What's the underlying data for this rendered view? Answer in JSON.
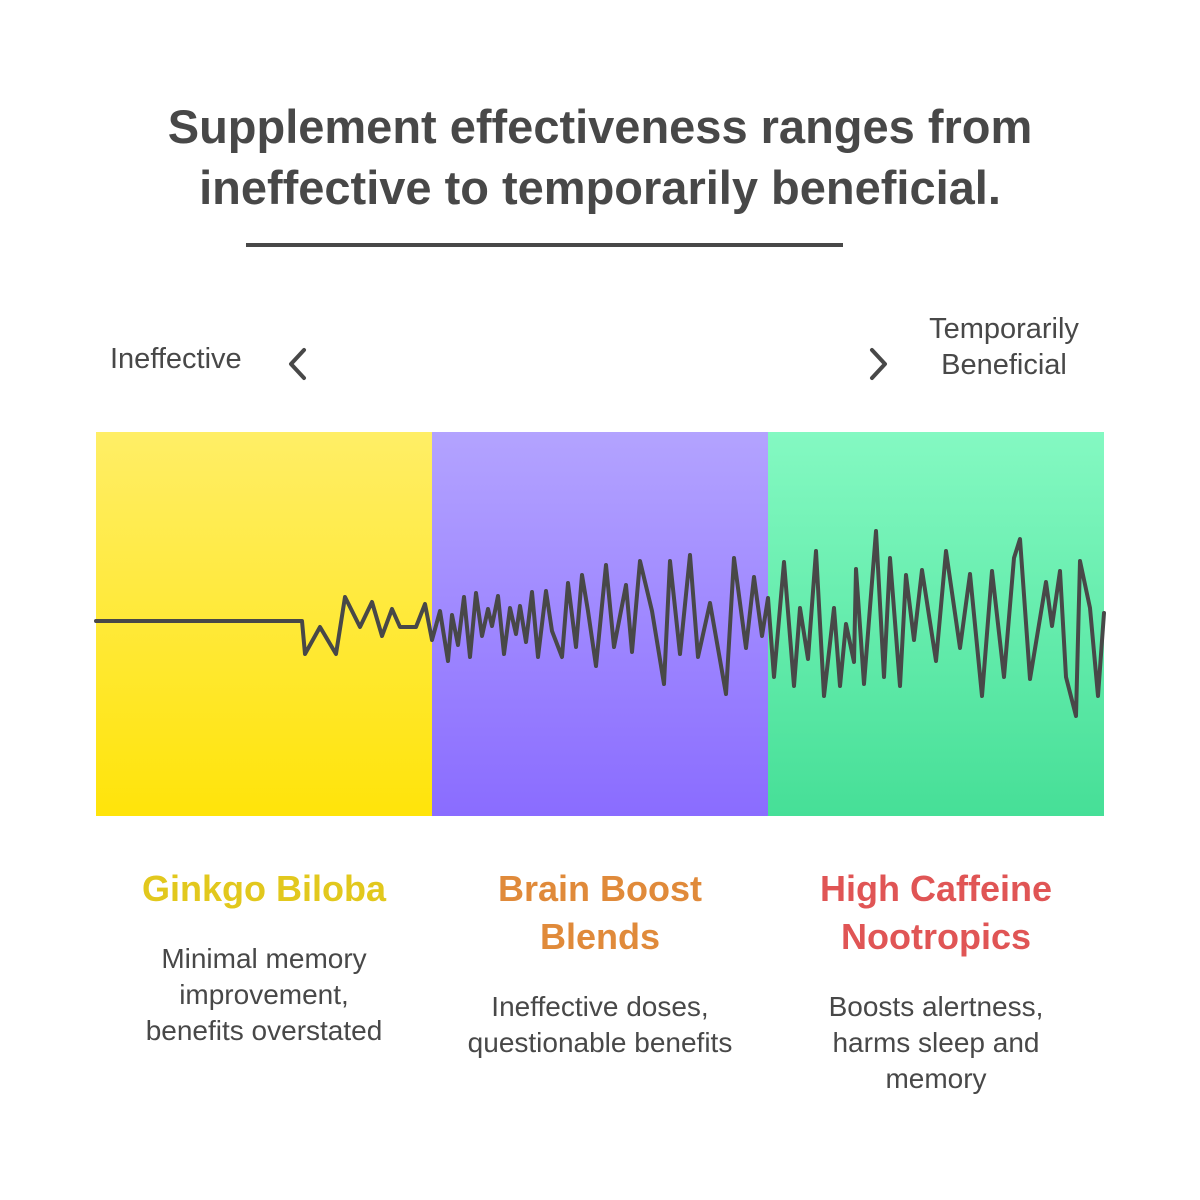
{
  "title": "Supplement effectiveness ranges from ineffective to temporarily beneficial.",
  "scale": {
    "left_label": "Ineffective",
    "right_label": "Temporarily Beneficial",
    "left_icon": "chevron-left-icon",
    "right_icon": "chevron-right-icon"
  },
  "columns": [
    {
      "title": "Ginkgo Biloba",
      "description": "Minimal memory improvement, benefits overstated",
      "color": "#e2c81d",
      "band_colors": [
        "#ffee66",
        "#ffe40a"
      ]
    },
    {
      "title": "Brain Boost Blends",
      "description": "Ineffective doses, questionable benefits",
      "color": "#e08a3a",
      "band_colors": [
        "#b3a3ff",
        "#8a6cff"
      ]
    },
    {
      "title": "High Caffeine Nootropics",
      "description": "Boosts alertness, harms sleep and memory",
      "color": "#e05555",
      "band_colors": [
        "#84f9c2",
        "#46df97"
      ]
    }
  ]
}
